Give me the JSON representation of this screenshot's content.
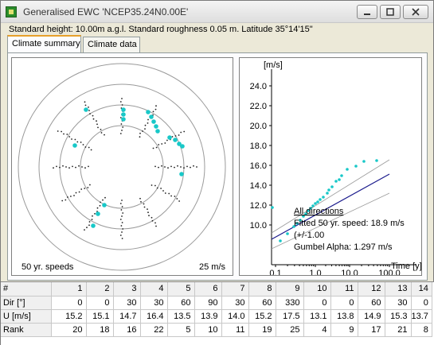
{
  "window": {
    "title": "Generalised EWC 'NCEP35.24N0.00E'",
    "info": "Standard height: 10.00m a.g.l. Standard roughness 0.05 m. Latitude 35°14'15\""
  },
  "tabs": [
    {
      "label": "Climate summary",
      "active": true
    },
    {
      "label": "Climate data",
      "active": false
    }
  ],
  "polar": {
    "caption": "50 yr. speeds",
    "scale": "25 m/s"
  },
  "gumbel": {
    "ylabel": "[m/s]",
    "xlabel": "Time [y]",
    "yticks": [
      "24.0",
      "22.0",
      "20.0",
      "18.0",
      "16.0",
      "14.0",
      "12.0",
      "10.0"
    ],
    "xticks": [
      "0.1",
      "1.0",
      "10.0",
      "100.0"
    ],
    "legend": {
      "heading": "All directions",
      "fitted": "Fitted 50 yr. speed: 18.9 m/s",
      "plusminus": "(+/-1.00",
      "alpha": "Gumbel Alpha: 1.297 m/s"
    }
  },
  "table": {
    "headers": [
      "#",
      "1",
      "2",
      "3",
      "4",
      "5",
      "6",
      "7",
      "8",
      "9",
      "10",
      "11",
      "12",
      "13",
      "14"
    ],
    "rows": [
      {
        "label": "Dir [°]",
        "values": [
          "0",
          "0",
          "30",
          "30",
          "60",
          "90",
          "30",
          "60",
          "330",
          "0",
          "0",
          "60",
          "30",
          "0"
        ]
      },
      {
        "label": "U [m/s]",
        "values": [
          "15.2",
          "15.1",
          "14.7",
          "16.4",
          "13.5",
          "13.9",
          "14.0",
          "15.2",
          "17.5",
          "13.1",
          "13.8",
          "14.9",
          "15.3",
          "13.7"
        ]
      },
      {
        "label": "Rank",
        "values": [
          "20",
          "18",
          "16",
          "22",
          "5",
          "10",
          "11",
          "19",
          "25",
          "4",
          "9",
          "17",
          "21",
          "8"
        ]
      }
    ]
  },
  "colors": {
    "marker": "#18c8c8",
    "fit_line": "#1a1a8c",
    "conf_line": "#9a9a9a",
    "dots": "#202020"
  }
}
